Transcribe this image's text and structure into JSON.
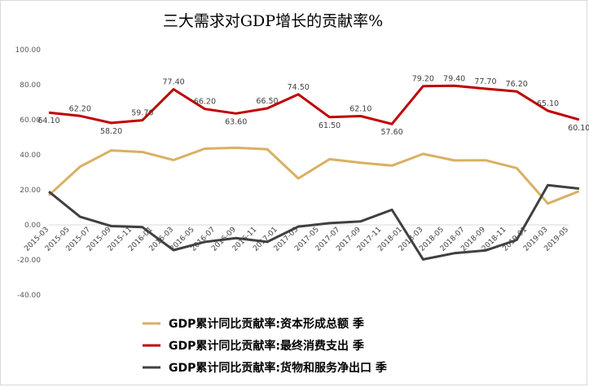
{
  "chart_data": {
    "type": "line",
    "title": "三大需求对GDP增长的贡献率%",
    "xlabel": "",
    "ylabel": "",
    "ylim": [
      -40,
      100
    ],
    "yticks": [
      "100.00",
      "80.00",
      "60.00",
      "40.00",
      "20.00",
      "0.00",
      "-20.00",
      "-40.00"
    ],
    "ytick_values": [
      100,
      80,
      60,
      40,
      20,
      0,
      -20,
      -40
    ],
    "grid": false,
    "legend_position": "bottom",
    "x": [
      "2015-03",
      "2015-05",
      "2015-07",
      "2015-09",
      "2015-11",
      "2016-01",
      "2016-03",
      "2016-05",
      "2016-07",
      "2016-09",
      "2016-11",
      "2017-01",
      "2017-03",
      "2017-05",
      "2017-07",
      "2017-09",
      "2017-11",
      "2018-01",
      "2018-03",
      "2018-05",
      "2018-07",
      "2018-09",
      "2018-11",
      "2019-01",
      "2019-03",
      "2019-05"
    ],
    "series": [
      {
        "name": "GDP累计同比贡献率:资本形成总额 季",
        "color": "#d9b063",
        "x": [
          "2015-03",
          "2015-06",
          "2015-09",
          "2015-12",
          "2016-03",
          "2016-06",
          "2016-09",
          "2016-12",
          "2017-03",
          "2017-06",
          "2017-09",
          "2017-12",
          "2018-03",
          "2018-06",
          "2018-09",
          "2018-12",
          "2019-03",
          "2019-06"
        ],
        "values": [
          16.9,
          33.2,
          42.5,
          41.6,
          37.0,
          43.5,
          44.0,
          43.2,
          26.5,
          37.5,
          35.5,
          33.8,
          40.5,
          36.8,
          36.9,
          32.4,
          12.2,
          19.2
        ]
      },
      {
        "name": "GDP累计同比贡献率:最终消费支出 季",
        "color": "#c00000",
        "x": [
          "2015-03",
          "2015-06",
          "2015-09",
          "2015-12",
          "2016-03",
          "2016-06",
          "2016-09",
          "2016-12",
          "2017-03",
          "2017-06",
          "2017-09",
          "2017-12",
          "2018-03",
          "2018-06",
          "2018-09",
          "2018-12",
          "2019-03",
          "2019-06"
        ],
        "values": [
          64.1,
          62.2,
          58.2,
          59.7,
          77.4,
          66.2,
          63.6,
          66.5,
          74.5,
          61.5,
          62.1,
          57.6,
          79.2,
          79.4,
          77.7,
          76.2,
          65.1,
          60.1
        ],
        "labels": [
          "64.10",
          "62.20",
          "58.20",
          "59.70",
          "77.40",
          "66.20",
          "63.60",
          "66.50",
          "74.50",
          "61.50",
          "62.10",
          "57.60",
          "79.20",
          "79.40",
          "77.70",
          "76.20",
          "65.10",
          "60.10"
        ]
      },
      {
        "name": "GDP累计同比贡献率:货物和服务净出口 季",
        "color": "#404040",
        "x": [
          "2015-03",
          "2015-06",
          "2015-09",
          "2015-12",
          "2016-03",
          "2016-06",
          "2016-09",
          "2016-12",
          "2017-03",
          "2017-06",
          "2017-09",
          "2017-12",
          "2018-03",
          "2018-06",
          "2018-09",
          "2018-12",
          "2019-03",
          "2019-06"
        ],
        "values": [
          19.0,
          4.6,
          -0.7,
          -1.3,
          -14.4,
          -9.7,
          -7.6,
          -9.7,
          -1.0,
          1.0,
          2.0,
          8.6,
          -19.7,
          -16.2,
          -14.6,
          -8.6,
          22.7,
          20.7
        ]
      }
    ]
  }
}
